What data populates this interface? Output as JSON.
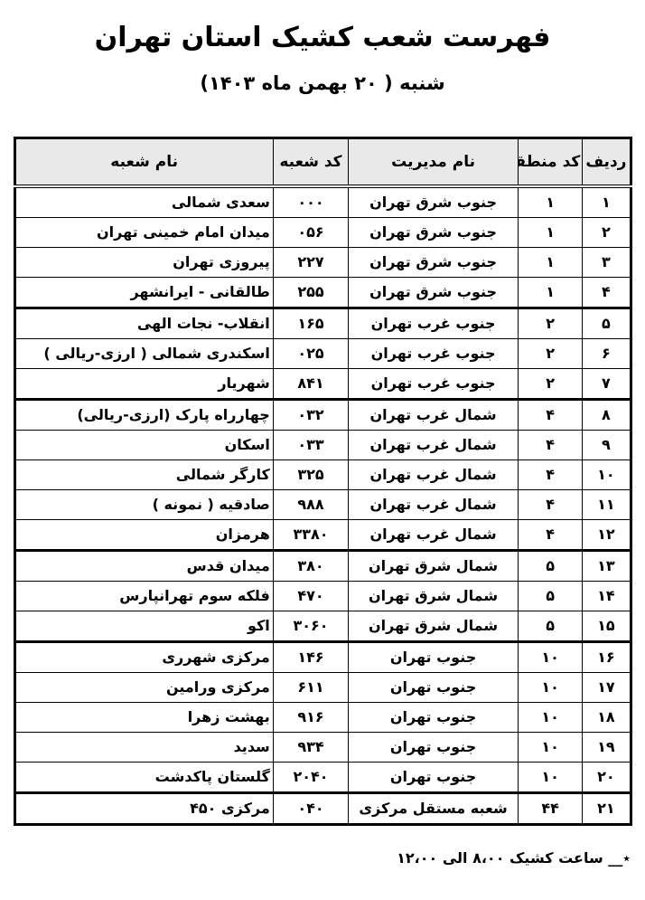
{
  "page": {
    "title": "فهرست شعب کشیک استان تهران",
    "subtitle": "شنبه ( ۲۰ بهمن ماه ۱۴۰۳)",
    "footer_note": "٭__ ساعت کشیک ۸،۰۰ الی ۱۲،۰۰"
  },
  "colors": {
    "header_bg": "#e9e9e9",
    "border": "#000000",
    "text": "#000000",
    "page_bg": "#ffffff"
  },
  "table": {
    "headers": [
      "ردیف",
      "کد منطقه",
      "نام مدیریت",
      "کد شعبه",
      "نام شعبه"
    ],
    "rows": [
      {
        "no": "۱",
        "region": "۱",
        "management": "جنوب شرق تهران",
        "code": "۰۰۰",
        "name": "سعدی شمالی",
        "group_start": false
      },
      {
        "no": "۲",
        "region": "۱",
        "management": "جنوب شرق تهران",
        "code": "۰۵۶",
        "name": "میدان امام خمینی تهران",
        "group_start": false
      },
      {
        "no": "۳",
        "region": "۱",
        "management": "جنوب شرق تهران",
        "code": "۲۲۷",
        "name": "پیروزی تهران",
        "group_start": false
      },
      {
        "no": "۴",
        "region": "۱",
        "management": "جنوب شرق تهران",
        "code": "۲۵۵",
        "name": "طالقانی - ایرانشهر",
        "group_start": false
      },
      {
        "no": "۵",
        "region": "۲",
        "management": "جنوب غرب تهران",
        "code": "۱۶۵",
        "name": "انقلاب- نجات الهی",
        "group_start": true
      },
      {
        "no": "۶",
        "region": "۲",
        "management": "جنوب غرب تهران",
        "code": "۰۲۵",
        "name": "اسکندری شمالی ( ارزی-ریالی )",
        "group_start": false
      },
      {
        "no": "۷",
        "region": "۲",
        "management": "جنوب غرب تهران",
        "code": "۸۴۱",
        "name": "شهریار",
        "group_start": false
      },
      {
        "no": "۸",
        "region": "۴",
        "management": "شمال غرب تهران",
        "code": "۰۳۲",
        "name": "چهارراه پارک (ارزی-ریالی)",
        "group_start": true
      },
      {
        "no": "۹",
        "region": "۴",
        "management": "شمال غرب تهران",
        "code": "۰۳۳",
        "name": "اسکان",
        "group_start": false
      },
      {
        "no": "۱۰",
        "region": "۴",
        "management": "شمال غرب تهران",
        "code": "۳۲۵",
        "name": "کارگر شمالی",
        "group_start": false
      },
      {
        "no": "۱۱",
        "region": "۴",
        "management": "شمال غرب تهران",
        "code": "۹۸۸",
        "name": "صادقیه ( نمونه )",
        "group_start": false
      },
      {
        "no": "۱۲",
        "region": "۴",
        "management": "شمال غرب تهران",
        "code": "۳۳۸۰",
        "name": "هرمزان",
        "group_start": false
      },
      {
        "no": "۱۳",
        "region": "۵",
        "management": "شمال شرق تهران",
        "code": "۳۸۰",
        "name": "میدان قدس",
        "group_start": true
      },
      {
        "no": "۱۴",
        "region": "۵",
        "management": "شمال شرق تهران",
        "code": "۴۷۰",
        "name": "فلکه سوم تهرانپارس",
        "group_start": false
      },
      {
        "no": "۱۵",
        "region": "۵",
        "management": "شمال شرق تهران",
        "code": "۳۰۶۰",
        "name": "اکو",
        "group_start": false
      },
      {
        "no": "۱۶",
        "region": "۱۰",
        "management": "جنوب تهران",
        "code": "۱۴۶",
        "name": "مرکزی شهرری",
        "group_start": true
      },
      {
        "no": "۱۷",
        "region": "۱۰",
        "management": "جنوب تهران",
        "code": "۶۱۱",
        "name": "مرکزی ورامین",
        "group_start": false
      },
      {
        "no": "۱۸",
        "region": "۱۰",
        "management": "جنوب تهران",
        "code": "۹۱۶",
        "name": "بهشت زهرا",
        "group_start": false
      },
      {
        "no": "۱۹",
        "region": "۱۰",
        "management": "جنوب تهران",
        "code": "۹۳۴",
        "name": "سدید",
        "group_start": false
      },
      {
        "no": "۲۰",
        "region": "۱۰",
        "management": "جنوب تهران",
        "code": "۲۰۴۰",
        "name": "گلستان پاکدشت",
        "group_start": false
      },
      {
        "no": "۲۱",
        "region": "۴۴",
        "management": "شعبه مستقل مرکزی",
        "code": "۰۴۰",
        "name": "مرکزی ۴۵۰",
        "group_start": true
      }
    ]
  }
}
